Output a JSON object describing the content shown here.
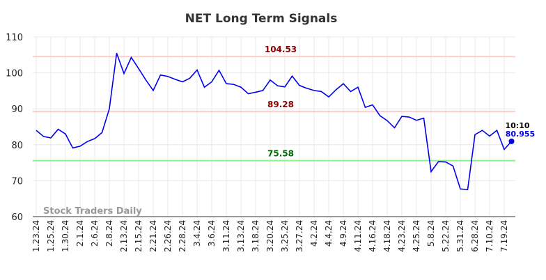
{
  "chart_data": {
    "type": "line",
    "title": "NET Long Term Signals",
    "categories": [
      "1.23.24",
      null,
      "1.25.24",
      null,
      "1.30.24",
      null,
      "2.1.24",
      null,
      "2.6.24",
      null,
      "2.8.24",
      null,
      "2.13.24",
      null,
      "2.15.24",
      null,
      "2.21.24",
      null,
      "2.26.24",
      null,
      "2.28.24",
      null,
      "3.4.24",
      null,
      "3.6.24",
      null,
      "3.11.24",
      null,
      "3.13.24",
      null,
      "3.18.24",
      null,
      "3.20.24",
      null,
      "3.25.24",
      null,
      "3.27.24",
      null,
      "4.2.24",
      null,
      "4.4.24",
      null,
      "4.9.24",
      null,
      "4.11.24",
      null,
      "4.16.24",
      null,
      "4.18.24",
      null,
      "4.23.24",
      null,
      "4.25.24",
      null,
      "5.8.24",
      null,
      "5.22.24",
      null,
      "5.31.24",
      null,
      "6.28.24",
      null,
      "7.10.24",
      null,
      "7.19.24",
      null
    ],
    "series": [
      {
        "color": "#0000ee",
        "values": [
          84,
          82.3,
          81.9,
          84.3,
          83,
          79.1,
          79.6,
          80.9,
          81.7,
          83.4,
          90,
          105.5,
          99.8,
          104.3,
          101.2,
          98,
          95.1,
          99.4,
          99,
          98.2,
          97.5,
          98.5,
          100.8,
          96,
          97.5,
          100.7,
          97,
          96.8,
          96,
          94.2,
          94.6,
          95.1,
          98,
          96.4,
          96.1,
          99.1,
          96.5,
          95.7,
          95.1,
          94.8,
          93.3,
          95.3,
          97,
          94.8,
          96,
          90.4,
          91.1,
          88.1,
          86.7,
          84.7,
          87.9,
          87.7,
          86.8,
          87.4,
          72.5,
          75.3,
          75.2,
          74.1,
          67.7,
          67.5,
          82.8,
          84,
          82.4,
          84,
          78.7,
          80.955
        ]
      }
    ],
    "hlines": [
      {
        "value": 104.53,
        "color": "#ffcccc",
        "label_color": "#8b0000"
      },
      {
        "value": 89.28,
        "color": "#ffcccc",
        "label_color": "#8b0000"
      },
      {
        "value": 75.58,
        "color": "#90ee90",
        "label_color": "#006400"
      }
    ],
    "last_label": "10:10",
    "watermark": "Stock Traders Daily",
    "ylim": [
      60,
      110
    ],
    "yticks": [
      60,
      70,
      80,
      90,
      100,
      110
    ],
    "grid": true
  }
}
